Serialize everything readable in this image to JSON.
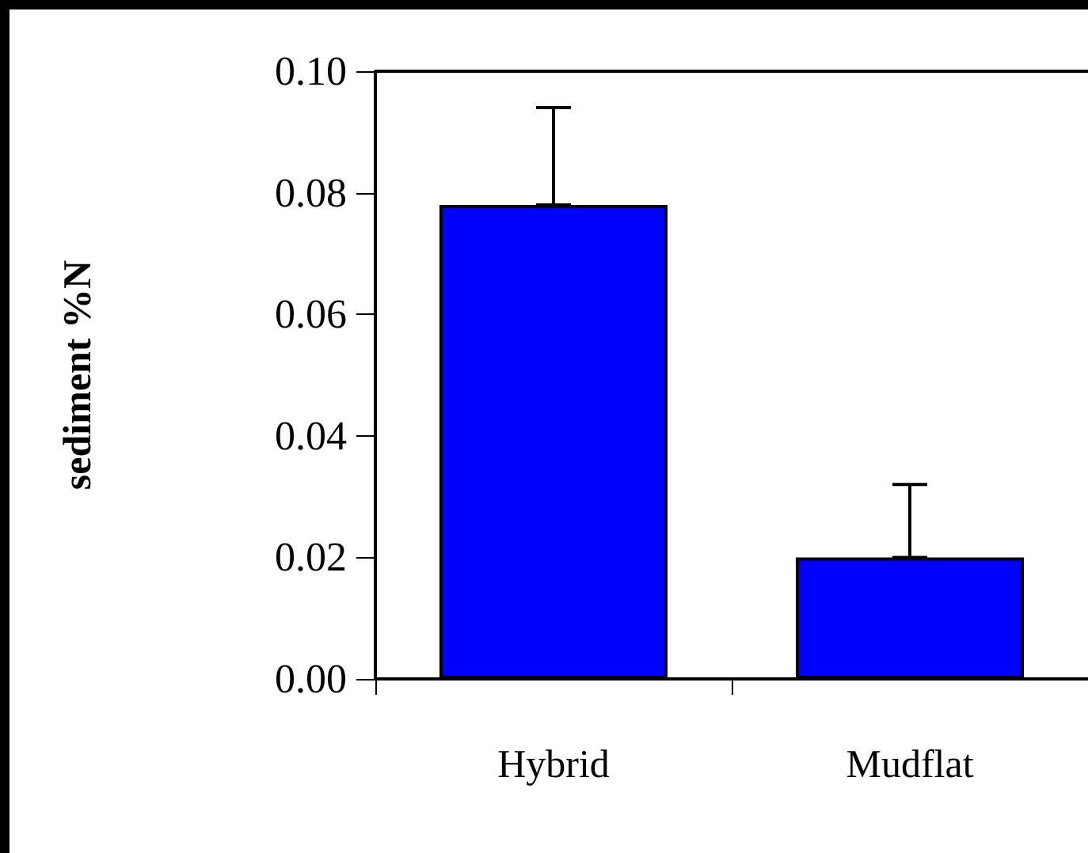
{
  "chart_data": {
    "type": "bar",
    "ylabel": "sediment %N",
    "categories": [
      "Hybrid",
      "Mudflat"
    ],
    "values": [
      0.078,
      0.02
    ],
    "color": "#0000ff",
    "errors": [
      [
        0.078,
        0.094
      ],
      [
        0.02,
        0.032
      ]
    ],
    "ylim": [
      0,
      0.1
    ],
    "yticks": [
      {
        "value": 0,
        "label": "0.00"
      },
      {
        "value": 0.02,
        "label": "0.02"
      },
      {
        "value": 0.04,
        "label": "0.04"
      },
      {
        "value": 0.06,
        "label": "0.06"
      },
      {
        "value": 0.08,
        "label": "0.08"
      },
      {
        "value": 0.1,
        "label": "0.10"
      }
    ],
    "grid": false
  }
}
